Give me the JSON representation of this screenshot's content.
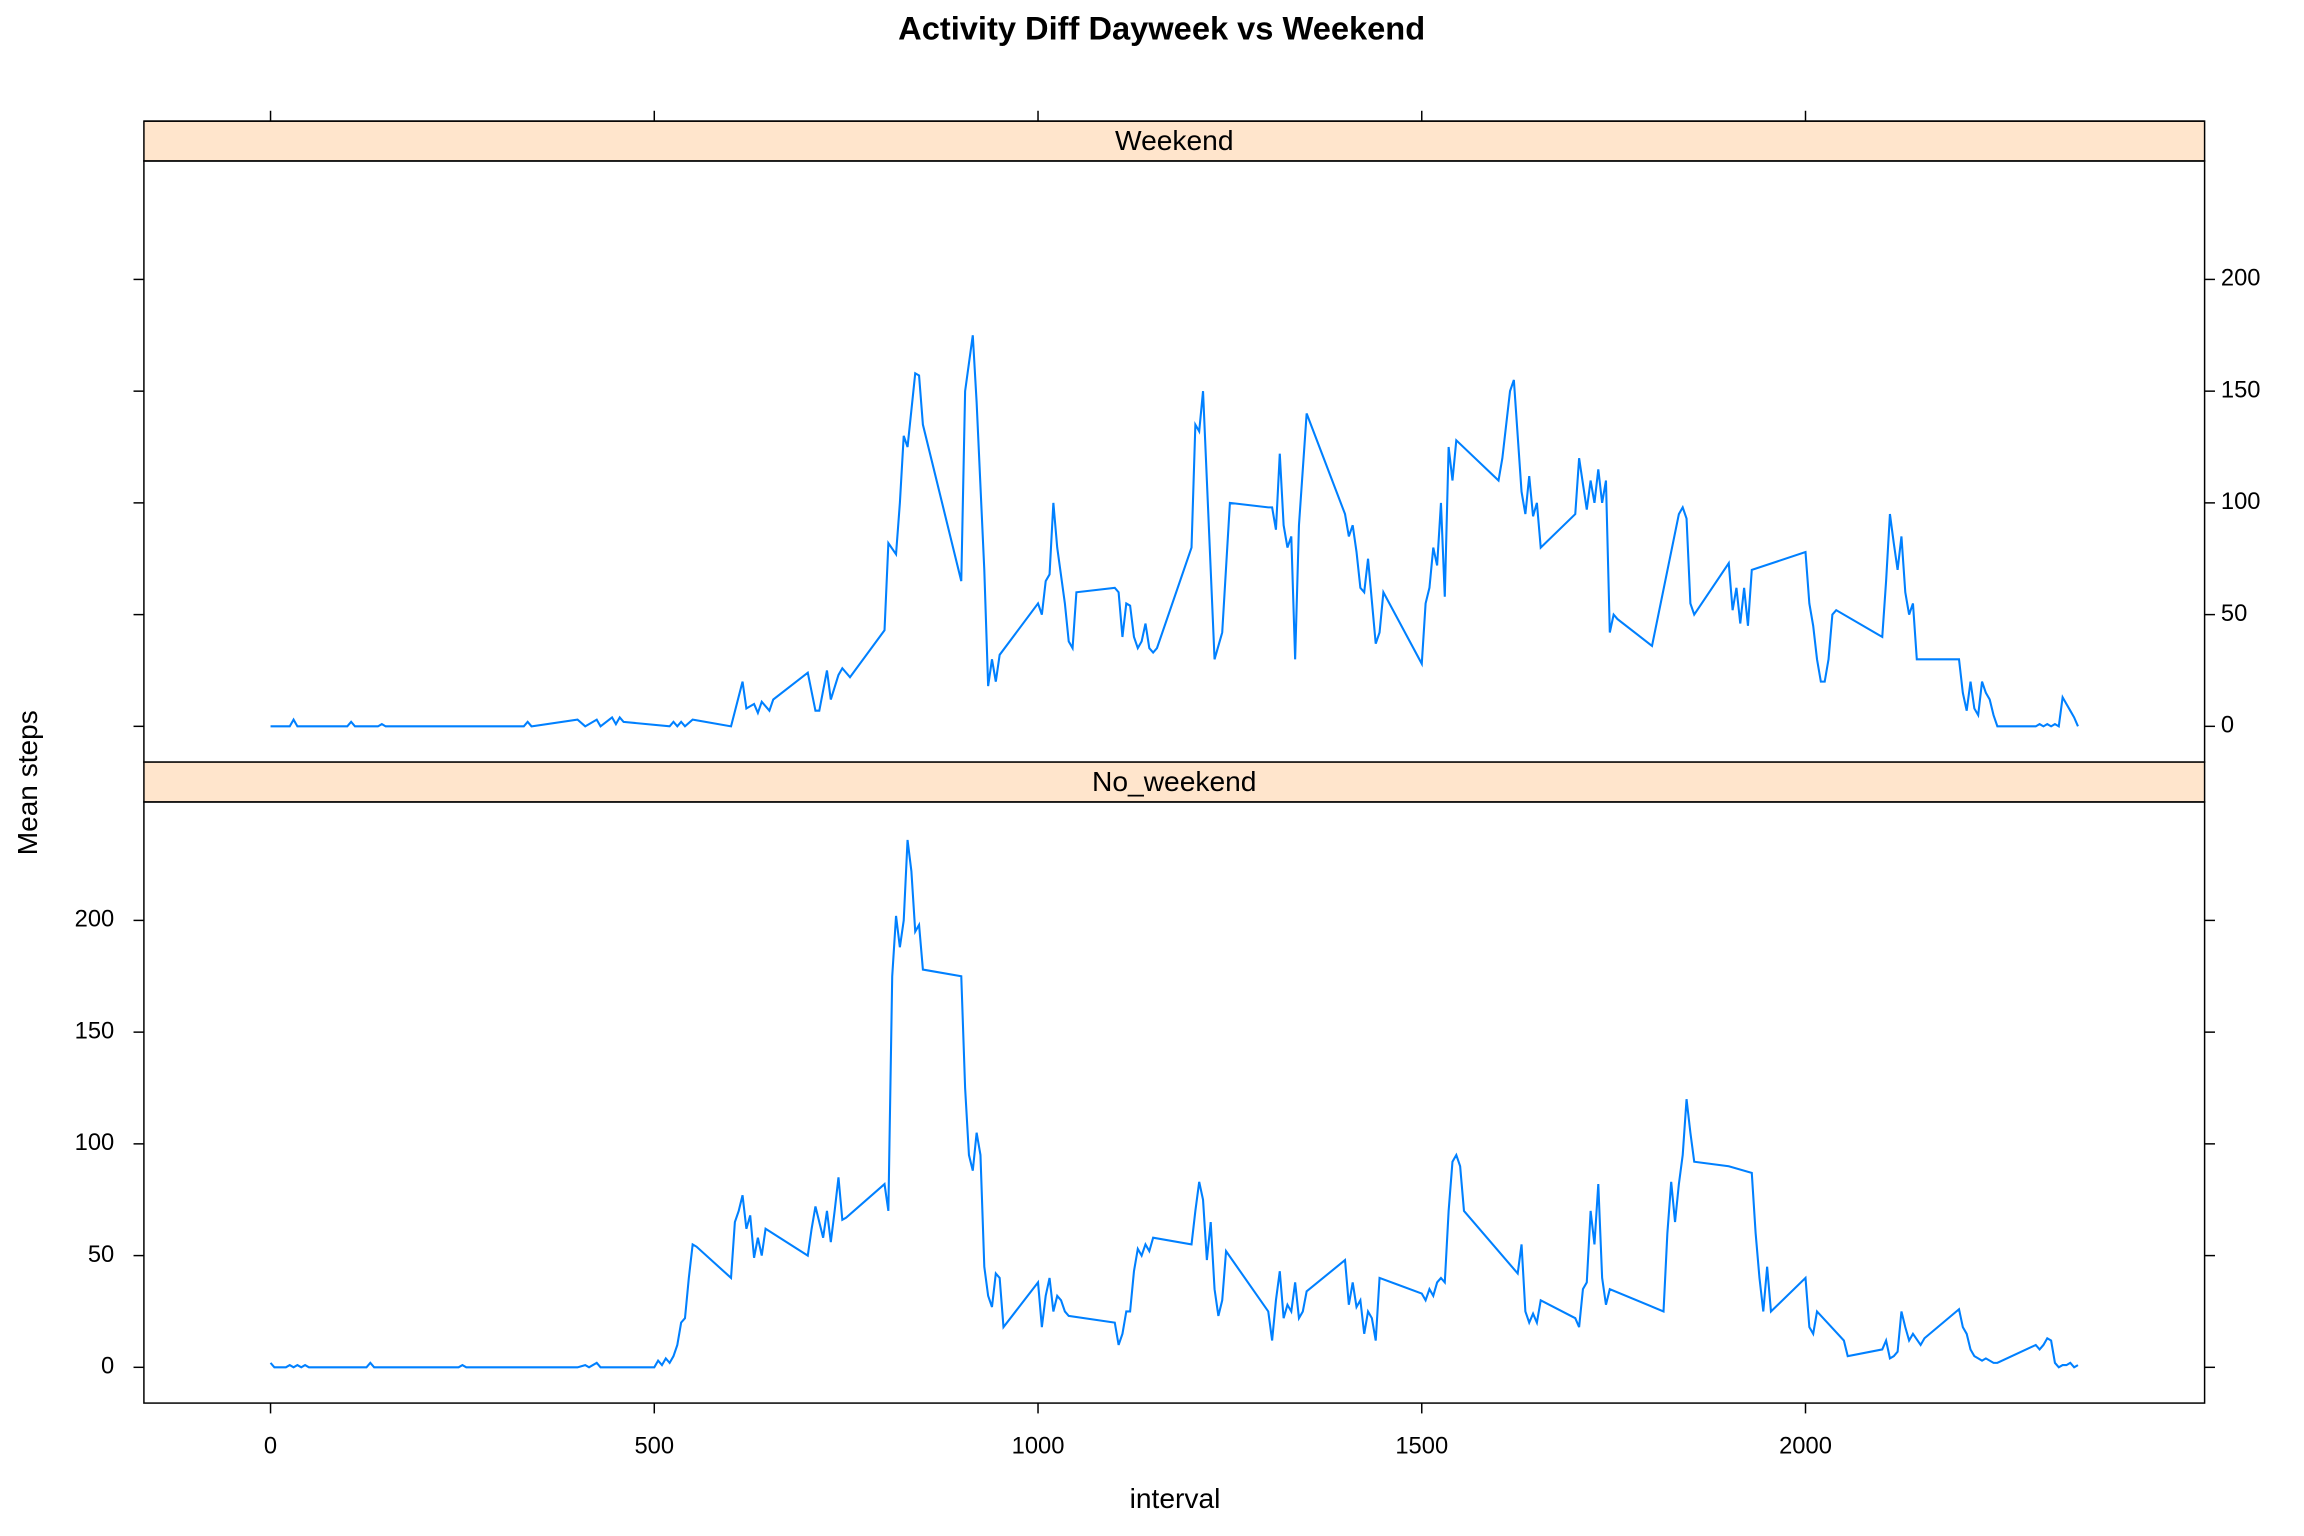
{
  "chart_data": {
    "type": "line",
    "title": "Activity Diff Dayweek vs Weekend",
    "xlabel": "interval",
    "ylabel": "Mean steps",
    "xlim": [
      -165,
      2520
    ],
    "ylim": [
      -16,
      253
    ],
    "xticks": [
      0,
      500,
      1000,
      1500,
      2000
    ],
    "yticks": [
      0,
      50,
      100,
      150,
      200
    ],
    "strip_color": "#ffe5cc",
    "series": [
      {
        "name": "Weekend",
        "color": "#0080ff",
        "x": [
          0,
          25,
          30,
          35,
          100,
          105,
          110,
          140,
          145,
          150,
          330,
          335,
          340,
          400,
          410,
          425,
          430,
          445,
          450,
          455,
          460,
          520,
          525,
          530,
          535,
          540,
          550,
          600,
          615,
          620,
          630,
          635,
          640,
          650,
          655,
          700,
          710,
          715,
          725,
          730,
          740,
          745,
          755,
          800,
          805,
          815,
          820,
          825,
          830,
          840,
          845,
          850,
          900,
          905,
          915,
          920,
          930,
          935,
          940,
          945,
          950,
          1000,
          1005,
          1010,
          1015,
          1020,
          1025,
          1035,
          1040,
          1045,
          1050,
          1100,
          1105,
          1110,
          1115,
          1120,
          1125,
          1130,
          1135,
          1140,
          1145,
          1150,
          1155,
          1200,
          1205,
          1210,
          1215,
          1220,
          1230,
          1240,
          1250,
          1300,
          1305,
          1310,
          1315,
          1320,
          1325,
          1330,
          1335,
          1340,
          1350,
          1400,
          1405,
          1410,
          1415,
          1420,
          1425,
          1430,
          1440,
          1445,
          1450,
          1500,
          1505,
          1510,
          1515,
          1520,
          1525,
          1530,
          1535,
          1540,
          1545,
          1600,
          1605,
          1610,
          1615,
          1620,
          1630,
          1635,
          1640,
          1645,
          1650,
          1655,
          1700,
          1705,
          1715,
          1720,
          1725,
          1730,
          1735,
          1740,
          1745,
          1750,
          1755,
          1800,
          1835,
          1840,
          1845,
          1850,
          1855,
          1900,
          1905,
          1910,
          1915,
          1920,
          1925,
          1930,
          2000,
          2005,
          2010,
          2015,
          2020,
          2025,
          2030,
          2035,
          2040,
          2100,
          2105,
          2110,
          2115,
          2120,
          2125,
          2130,
          2135,
          2140,
          2145,
          2150,
          2155,
          2200,
          2205,
          2210,
          2215,
          2220,
          2225,
          2230,
          2235,
          2240,
          2245,
          2250,
          2300,
          2305,
          2310,
          2315,
          2320,
          2325,
          2330,
          2335,
          2340,
          2345,
          2350,
          2355
        ],
        "values": [
          0,
          0,
          3,
          0,
          0,
          2,
          0,
          0,
          1,
          0,
          0,
          2,
          0,
          3,
          0,
          3,
          0,
          4,
          1,
          4,
          2,
          0,
          2,
          0,
          2,
          0,
          3,
          0,
          20,
          8,
          10,
          6,
          11,
          7,
          12,
          24,
          7,
          7,
          25,
          12,
          23,
          26,
          22,
          43,
          82,
          77,
          100,
          130,
          125,
          158,
          157,
          135,
          65,
          150,
          175,
          145,
          70,
          18,
          30,
          20,
          32,
          55,
          50,
          65,
          68,
          100,
          80,
          55,
          38,
          35,
          60,
          62,
          60,
          40,
          55,
          54,
          40,
          35,
          38,
          46,
          35,
          33,
          35,
          80,
          135,
          132,
          150,
          110,
          30,
          42,
          100,
          98,
          98,
          88,
          122,
          90,
          80,
          85,
          30,
          90,
          140,
          95,
          85,
          90,
          78,
          62,
          60,
          75,
          37,
          42,
          60,
          28,
          55,
          62,
          80,
          72,
          100,
          58,
          125,
          110,
          128,
          110,
          120,
          135,
          150,
          155,
          105,
          95,
          112,
          94,
          100,
          80,
          95,
          120,
          97,
          110,
          100,
          115,
          100,
          110,
          42,
          50,
          48,
          36,
          95,
          98,
          93,
          55,
          50,
          73,
          52,
          62,
          46,
          62,
          45,
          70,
          78,
          55,
          45,
          30,
          20,
          20,
          30,
          50,
          52,
          40,
          65,
          95,
          82,
          70,
          85,
          60,
          50,
          55,
          30,
          30,
          30,
          30,
          15,
          7,
          20,
          8,
          5,
          20,
          15,
          12,
          5,
          0,
          0,
          1,
          0,
          1,
          0,
          1,
          0,
          13,
          10,
          7,
          4,
          0
        ]
      },
      {
        "name": "No_weekend",
        "color": "#0080ff",
        "x": [
          0,
          5,
          20,
          25,
          30,
          35,
          40,
          45,
          50,
          125,
          130,
          135,
          245,
          250,
          255,
          400,
          410,
          415,
          425,
          430,
          440,
          500,
          505,
          510,
          515,
          520,
          525,
          530,
          535,
          540,
          545,
          550,
          555,
          600,
          605,
          610,
          615,
          620,
          625,
          630,
          635,
          640,
          645,
          700,
          705,
          710,
          715,
          720,
          725,
          730,
          735,
          740,
          745,
          750,
          800,
          805,
          810,
          815,
          820,
          825,
          830,
          835,
          840,
          845,
          850,
          900,
          905,
          910,
          915,
          920,
          925,
          930,
          935,
          940,
          945,
          950,
          955,
          1000,
          1005,
          1010,
          1015,
          1020,
          1025,
          1030,
          1035,
          1040,
          1100,
          1105,
          1110,
          1115,
          1120,
          1125,
          1130,
          1135,
          1140,
          1145,
          1150,
          1200,
          1205,
          1210,
          1215,
          1220,
          1225,
          1230,
          1235,
          1240,
          1245,
          1300,
          1305,
          1310,
          1315,
          1320,
          1325,
          1330,
          1335,
          1340,
          1345,
          1350,
          1400,
          1405,
          1410,
          1415,
          1420,
          1425,
          1430,
          1435,
          1440,
          1445,
          1500,
          1505,
          1510,
          1515,
          1520,
          1525,
          1530,
          1535,
          1540,
          1545,
          1550,
          1555,
          1625,
          1630,
          1635,
          1640,
          1645,
          1650,
          1655,
          1700,
          1705,
          1710,
          1715,
          1720,
          1725,
          1730,
          1735,
          1740,
          1745,
          1815,
          1820,
          1825,
          1830,
          1835,
          1840,
          1845,
          1850,
          1855,
          1900,
          1930,
          1935,
          1940,
          1945,
          1950,
          1955,
          2000,
          2005,
          2010,
          2015,
          2050,
          2055,
          2100,
          2105,
          2110,
          2115,
          2120,
          2125,
          2130,
          2135,
          2140,
          2150,
          2155,
          2200,
          2205,
          2210,
          2215,
          2220,
          2225,
          2230,
          2235,
          2240,
          2245,
          2250,
          2300,
          2305,
          2310,
          2315,
          2320,
          2325,
          2330,
          2335,
          2340,
          2345,
          2350,
          2355
        ],
        "values": [
          2,
          0,
          0,
          1,
          0,
          1,
          0,
          1,
          0,
          0,
          2,
          0,
          0,
          1,
          0,
          0,
          1,
          0,
          2,
          0,
          0,
          0,
          3,
          1,
          4,
          2,
          5,
          10,
          20,
          22,
          40,
          55,
          54,
          40,
          65,
          70,
          77,
          62,
          68,
          49,
          58,
          50,
          62,
          50,
          62,
          72,
          65,
          58,
          70,
          56,
          70,
          85,
          66,
          67,
          82,
          70,
          175,
          202,
          188,
          200,
          236,
          222,
          195,
          198,
          178,
          175,
          125,
          95,
          88,
          105,
          95,
          45,
          32,
          27,
          42,
          40,
          18,
          38,
          18,
          32,
          40,
          25,
          32,
          30,
          25,
          23,
          20,
          10,
          15,
          25,
          25,
          43,
          53,
          50,
          55,
          52,
          58,
          55,
          70,
          83,
          75,
          48,
          65,
          35,
          23,
          30,
          52,
          25,
          12,
          30,
          43,
          22,
          28,
          25,
          38,
          22,
          25,
          34,
          48,
          28,
          38,
          27,
          30,
          15,
          25,
          22,
          12,
          40,
          33,
          30,
          35,
          32,
          38,
          40,
          38,
          70,
          92,
          95,
          90,
          70,
          42,
          55,
          25,
          20,
          24,
          20,
          30,
          22,
          18,
          35,
          38,
          70,
          55,
          82,
          40,
          28,
          35,
          25,
          60,
          83,
          65,
          82,
          95,
          120,
          105,
          92,
          90,
          87,
          60,
          40,
          25,
          45,
          25,
          40,
          18,
          15,
          25,
          12,
          5,
          8,
          12,
          4,
          5,
          7,
          25,
          18,
          12,
          15,
          10,
          13,
          26,
          18,
          15,
          8,
          5,
          4,
          3,
          4,
          3,
          2,
          2,
          10,
          8,
          10,
          13,
          12,
          2,
          0,
          1,
          1,
          2,
          0,
          1
        ]
      }
    ]
  }
}
